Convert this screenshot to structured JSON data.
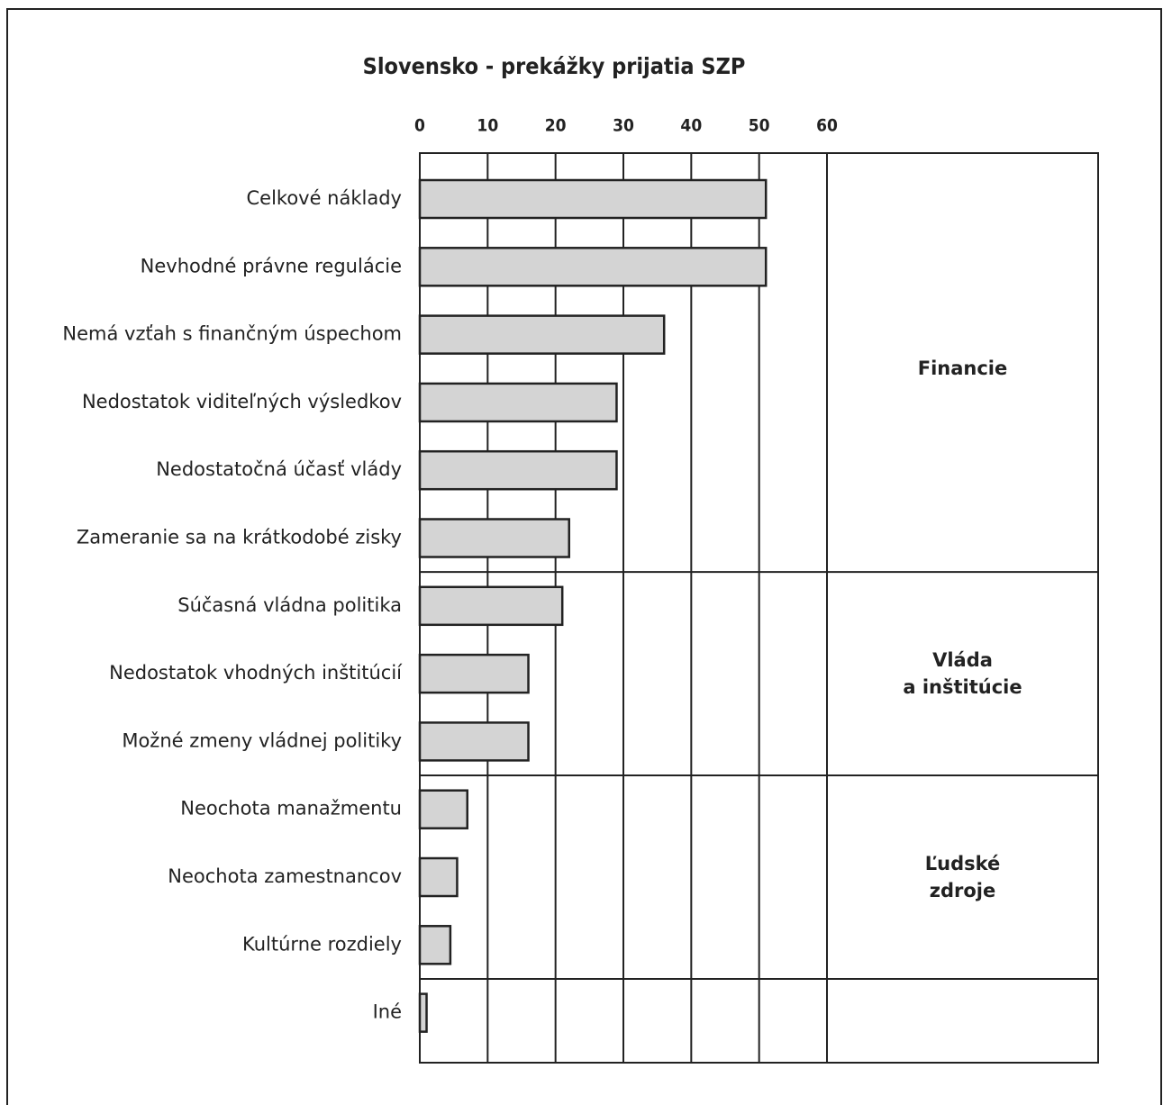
{
  "chart_data": {
    "type": "bar",
    "orientation": "horizontal",
    "title": "Slovensko - prekážky prijatia SZP",
    "color": "#d4d4d4",
    "xlim": [
      0,
      60
    ],
    "xticks": [
      0,
      10,
      20,
      30,
      40,
      50,
      60
    ],
    "grid": true,
    "groups": [
      {
        "name": "Financie",
        "categories": [
          "Celkové náklady",
          "Nevhodné právne regulácie",
          "Nemá vzťah s finančným úspechom",
          "Nedostatok viditeľných výsledkov",
          "Nedostatočná účasť vlády",
          "Zameranie sa na krátkodobé zisky"
        ],
        "values": [
          51,
          51,
          36,
          29,
          29,
          22
        ]
      },
      {
        "name": "Vláda\na inštitúcie",
        "categories": [
          "Súčasná vládna politika",
          "Nedostatok  vhodných inštitúcií",
          "Možné zmeny vládnej politiky"
        ],
        "values": [
          21,
          16,
          16
        ]
      },
      {
        "name": "Ľudské\nzdroje",
        "categories": [
          "Neochota manažmentu",
          "Neochota zamestnancov",
          "Kultúrne rozdiely"
        ],
        "values": [
          7,
          5.5,
          4.5
        ]
      },
      {
        "name": null,
        "categories": [
          "Iné"
        ],
        "values": [
          1
        ]
      }
    ]
  }
}
